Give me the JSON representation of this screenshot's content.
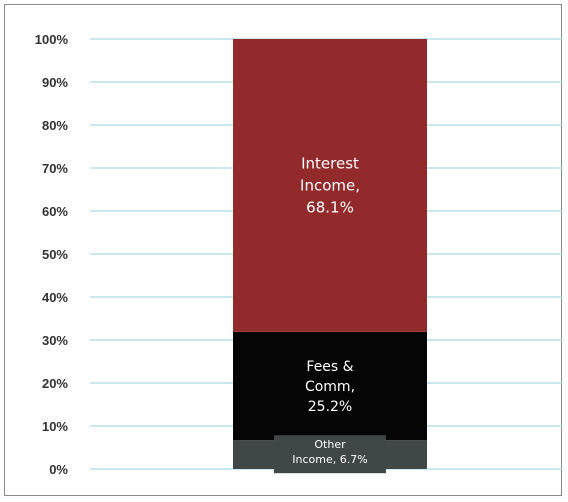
{
  "chart_data": {
    "type": "bar",
    "stacked": true,
    "categories": [
      ""
    ],
    "ylim": [
      0,
      100
    ],
    "yticks": [
      "0%",
      "10%",
      "20%",
      "30%",
      "40%",
      "50%",
      "60%",
      "70%",
      "80%",
      "90%",
      "100%"
    ],
    "grid": true,
    "legend": "none",
    "series": [
      {
        "label_lines": [
          "Other",
          "Income, 6.7%"
        ],
        "values": [
          6.7
        ],
        "color": "#3f4747"
      },
      {
        "label_lines": [
          "Fees &",
          "Comm,",
          "25.2%"
        ],
        "values": [
          25.2
        ],
        "color": "#050505"
      },
      {
        "label_lines": [
          "Interest",
          "Income,",
          "68.1%"
        ],
        "values": [
          68.1
        ],
        "color": "#922a2c"
      }
    ]
  },
  "colors": {
    "gridline": "#a9dbe6",
    "tick_text": "#333333",
    "segment_text": "#ffffff"
  }
}
